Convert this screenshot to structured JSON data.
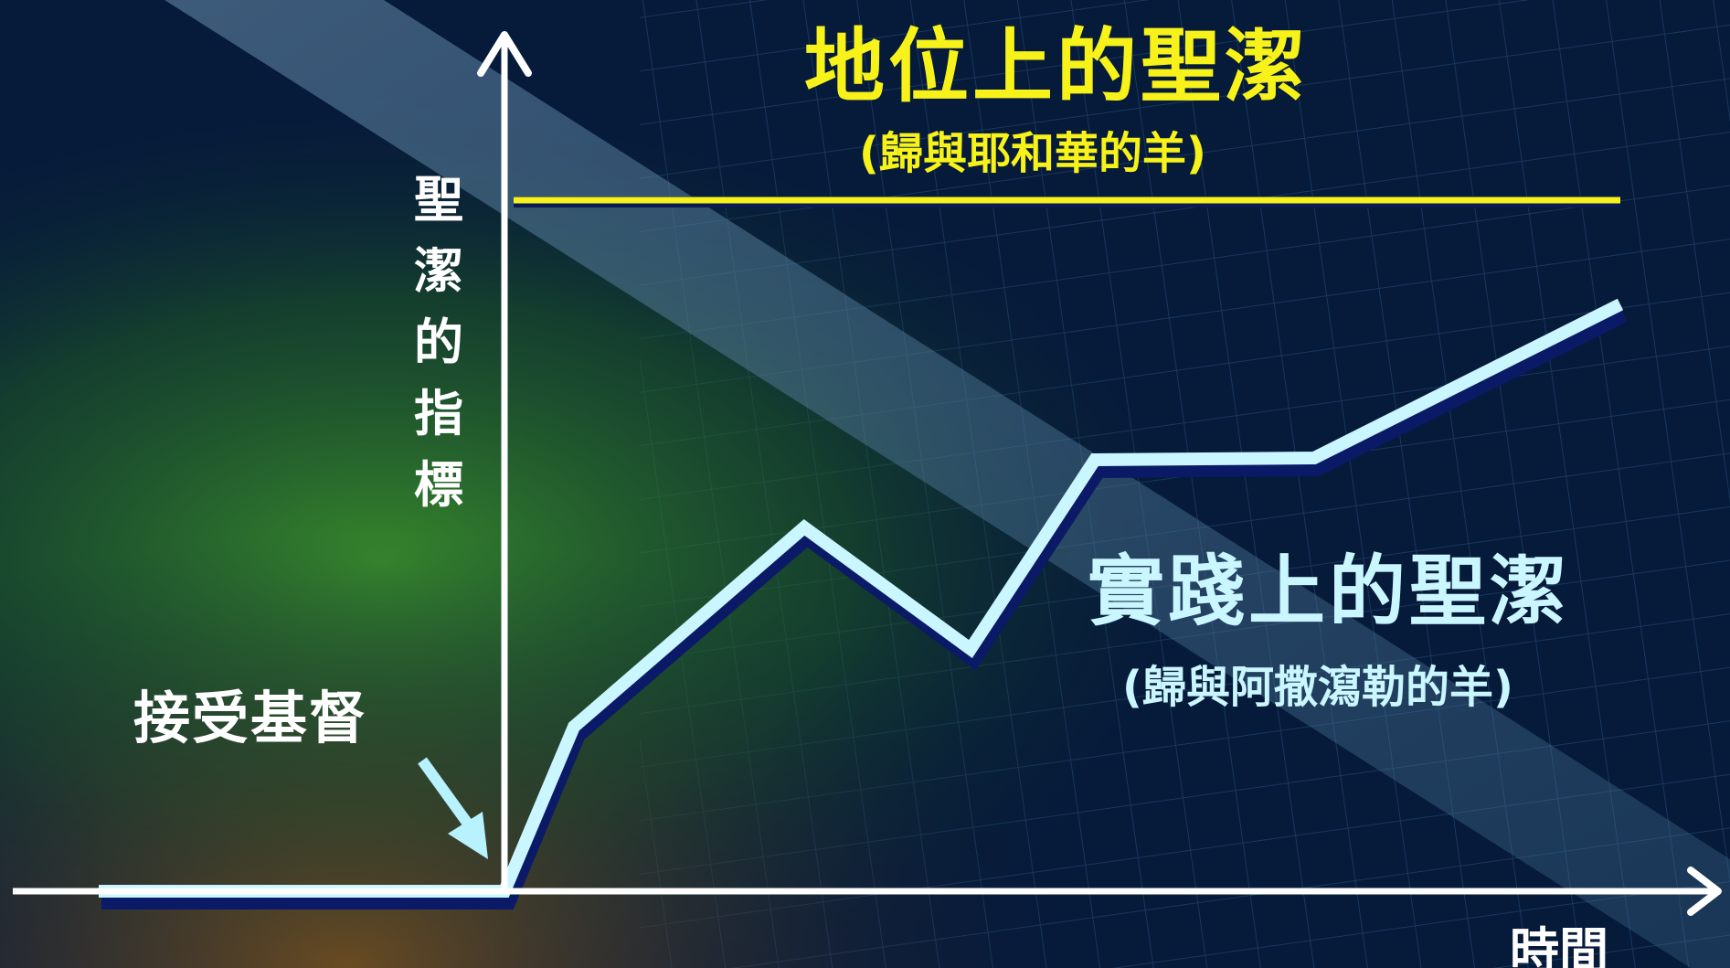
{
  "diagram": {
    "positional": {
      "title": "地位上的聖潔",
      "subtitle": "(歸與耶和華的羊)"
    },
    "practical": {
      "title": "實踐上的聖潔",
      "subtitle": "(歸與阿撒瀉勒的羊)"
    },
    "event_label": "接受基督",
    "y_axis_label": "聖潔的指標",
    "x_axis_label": "時間"
  },
  "colors": {
    "positional": "#f6f21a",
    "practical": "#c9f6ff",
    "axis": "#ffffff",
    "background": "#061a3a"
  }
}
